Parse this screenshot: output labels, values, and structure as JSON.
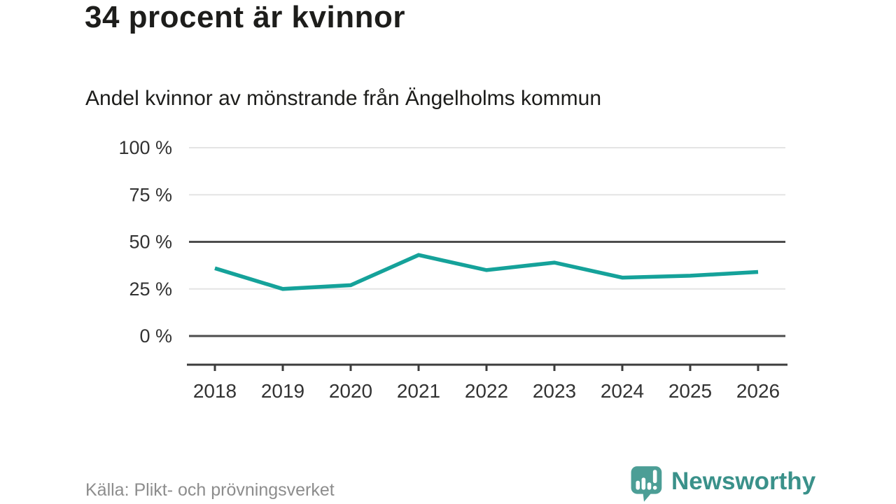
{
  "header": {
    "title": "34 procent är kvinnor",
    "subtitle": "Andel kvinnor av mönstrande från Ängelholms kommun"
  },
  "chart_data": {
    "type": "line",
    "x": [
      "2018",
      "2019",
      "2020",
      "2021",
      "2022",
      "2023",
      "2024",
      "2025",
      "2026"
    ],
    "series": [
      {
        "name": "Andel kvinnor av mönstrande",
        "values": [
          36,
          25,
          27,
          43,
          35,
          39,
          31,
          32,
          34
        ]
      }
    ],
    "title": "34 procent är kvinnor",
    "subtitle": "Andel kvinnor av mönstrande från Ängelholms kommun",
    "xlabel": "",
    "ylabel": "",
    "ylim": [
      0,
      100
    ],
    "yticks": [
      0,
      25,
      50,
      75,
      100
    ],
    "ytick_labels": [
      "0 %",
      "25 %",
      "50 %",
      "75 %",
      "100 %"
    ],
    "emphasized_yticks": [
      0,
      50
    ],
    "grid": true,
    "legend": "none",
    "unit": "%"
  },
  "footer": {
    "source": "Källa: Plikt- och prövningsverket",
    "brand": "Newsworthy"
  },
  "colors": {
    "line": "#15a29a",
    "grid_light": "#e4e4e4",
    "grid_dark": "#4d4d4d",
    "axis": "#3c3c3c",
    "text_dark": "#1d1d1b",
    "tick_text": "#333333",
    "source_text": "#8d8d8d",
    "brand_teal": "#3a918a",
    "brand_icon_teal": "#4c9e96"
  }
}
